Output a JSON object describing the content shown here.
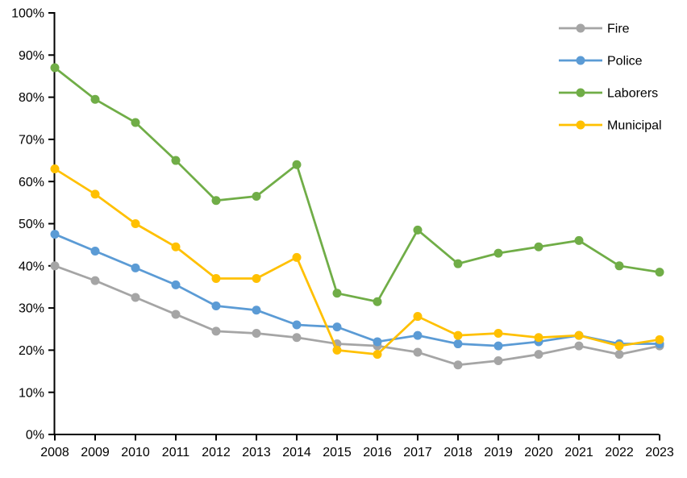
{
  "chart_data": {
    "type": "line",
    "title": "",
    "xlabel": "",
    "ylabel": "",
    "categories": [
      "2008",
      "2009",
      "2010",
      "2011",
      "2012",
      "2013",
      "2014",
      "2015",
      "2016",
      "2017",
      "2018",
      "2019",
      "2020",
      "2021",
      "2022",
      "2023"
    ],
    "series": [
      {
        "name": "Fire",
        "color": "#A5A5A5",
        "values": [
          40,
          36.5,
          32.5,
          28.5,
          24.5,
          24,
          23,
          21.5,
          21,
          19.5,
          16.5,
          17.5,
          19,
          21,
          19,
          21
        ]
      },
      {
        "name": "Police",
        "color": "#5B9BD5",
        "values": [
          47.5,
          43.5,
          39.5,
          35.5,
          30.5,
          29.5,
          26,
          25.5,
          22,
          23.5,
          21.5,
          21,
          22,
          23.5,
          21.5,
          21.5
        ]
      },
      {
        "name": "Laborers",
        "color": "#70AD47",
        "values": [
          87,
          79.5,
          74,
          65,
          55.5,
          56.5,
          64,
          33.5,
          31.5,
          48.5,
          40.5,
          43,
          44.5,
          46,
          40,
          38.5
        ]
      },
      {
        "name": "Municipal",
        "color": "#FFC000",
        "values": [
          63,
          57,
          50,
          44.5,
          37,
          37,
          42,
          20,
          19,
          28,
          23.5,
          24,
          23,
          23.5,
          21,
          22.5
        ]
      }
    ],
    "ylim": [
      0,
      100
    ],
    "y_tick_step": 10,
    "y_tick_labels": [
      "0%",
      "10%",
      "20%",
      "30%",
      "40%",
      "50%",
      "60%",
      "70%",
      "80%",
      "90%",
      "100%"
    ],
    "grid": false,
    "legend_position": "top-right",
    "axis_color": "#000000",
    "marker": "circle"
  }
}
